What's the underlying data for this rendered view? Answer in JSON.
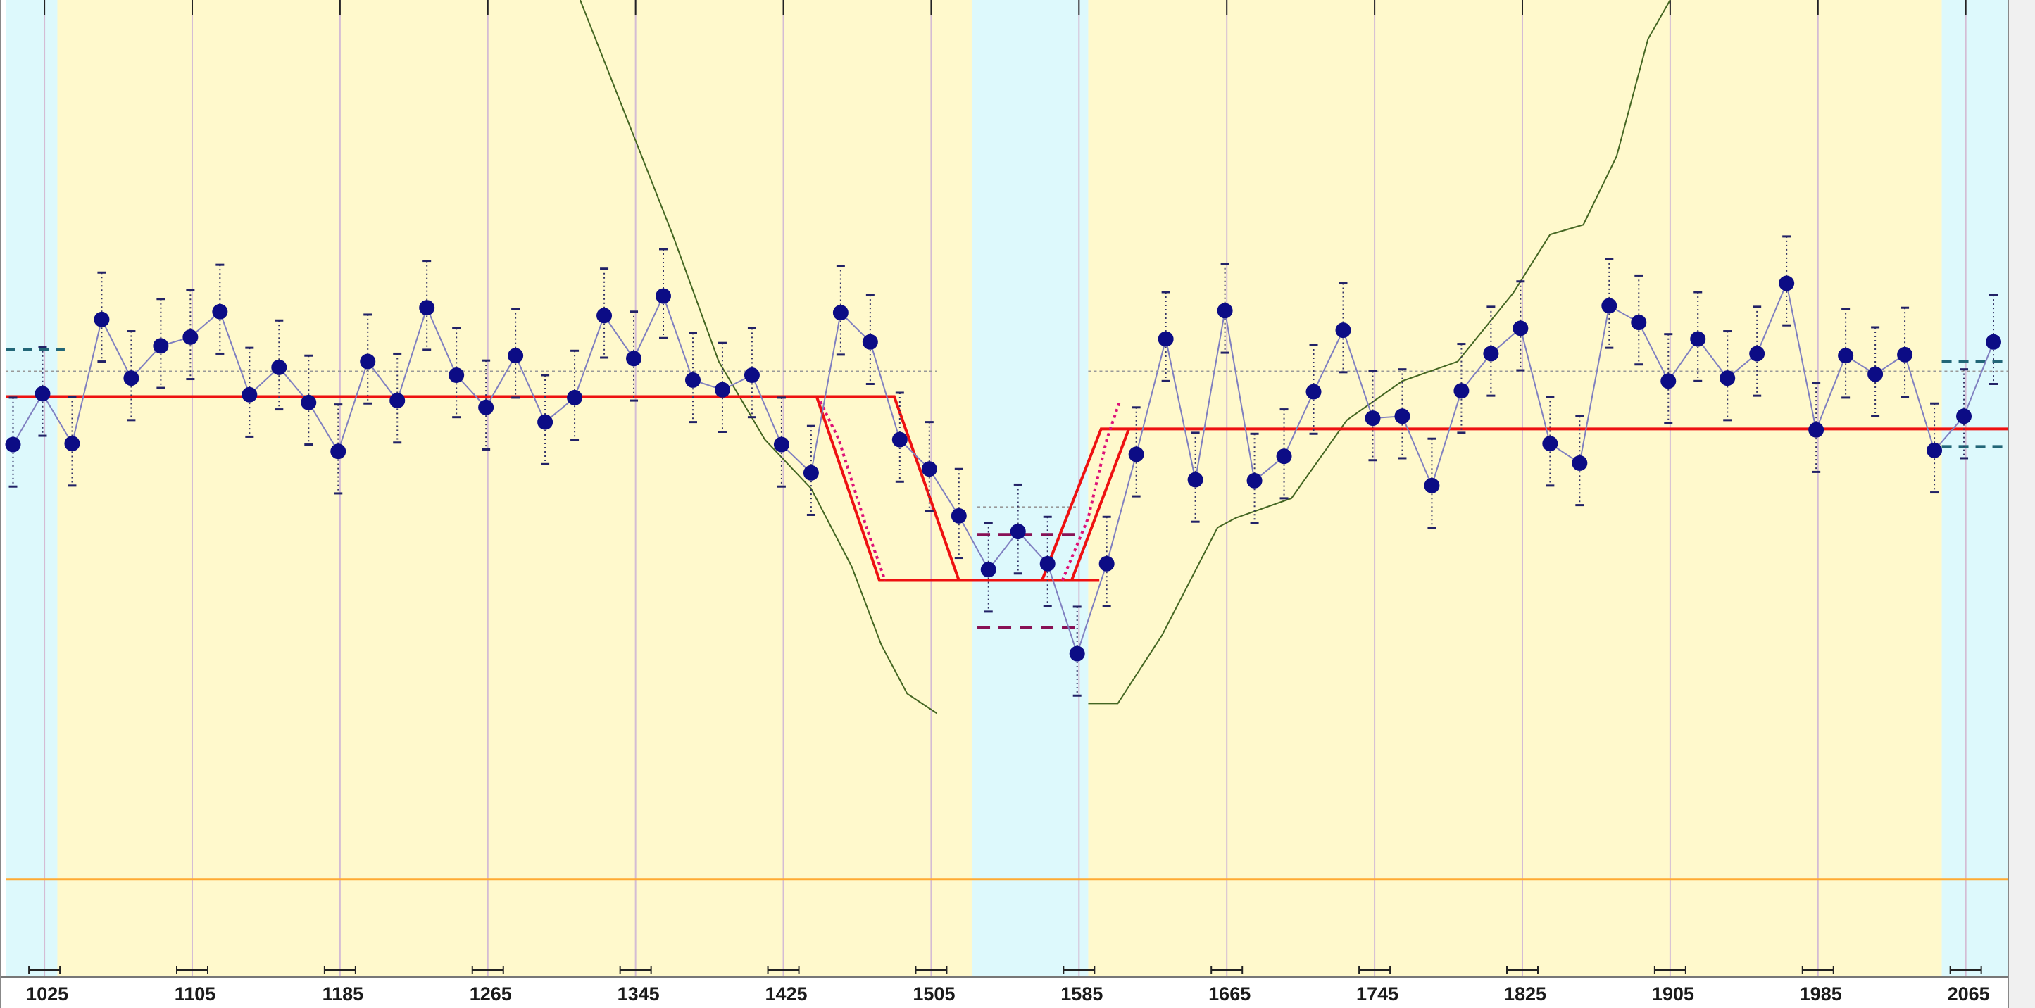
{
  "chart_data": {
    "type": "scatter",
    "title": "",
    "xlabel": "",
    "ylabel": "",
    "xlim": [
      1004,
      2088
    ],
    "ylim": [
      0,
      100
    ],
    "grid": true,
    "x_tick_labels": [
      "1025",
      "1105",
      "1185",
      "1265",
      "1345",
      "1425",
      "1505",
      "1585",
      "1665",
      "1745",
      "1825",
      "1905",
      "1985",
      "2065"
    ],
    "x_ticks": [
      1025,
      1105,
      1185,
      1265,
      1345,
      1425,
      1505,
      1585,
      1665,
      1745,
      1825,
      1905,
      1985,
      2065
    ],
    "colors": {
      "background_yellow": "#fff9cc",
      "background_cyan": "#ddf9fc",
      "points": "#0c0c85",
      "connector": "#7f7fc0",
      "model": "#ee1111",
      "model_dotted": "#dd1177",
      "dashed_levels": "#881155",
      "edge_dashed": "#226677",
      "smooth_curve": "#446622",
      "baseline": "#ffaa33",
      "grid": "#d4bcd4"
    },
    "background_bands": [
      {
        "from": 1004,
        "to": 1032,
        "color": "cyan"
      },
      {
        "from": 1032,
        "to": 1527,
        "color": "yellow"
      },
      {
        "from": 1527,
        "to": 1590,
        "color": "cyan"
      },
      {
        "from": 1590,
        "to": 2052,
        "color": "yellow"
      },
      {
        "from": 2052,
        "to": 2088,
        "color": "cyan"
      }
    ],
    "observations": {
      "x": [
        1008,
        1024,
        1040,
        1056,
        1072,
        1088,
        1104,
        1120,
        1136,
        1152,
        1168,
        1184,
        1200,
        1216,
        1232,
        1248,
        1264,
        1280,
        1296,
        1312,
        1328,
        1344,
        1360,
        1376,
        1392,
        1408,
        1424,
        1440,
        1456,
        1472,
        1488,
        1504,
        1520,
        1536,
        1552,
        1568,
        1584,
        1600,
        1616,
        1632,
        1648,
        1664,
        1680,
        1696,
        1712,
        1728,
        1744,
        1760,
        1776,
        1792,
        1808,
        1824,
        1840,
        1856,
        1872,
        1888,
        1904,
        1920,
        1936,
        1952,
        1968,
        1984,
        2000,
        2016,
        2032,
        2048,
        2064,
        2080
      ],
      "y": [
        54.5,
        59.7,
        54.6,
        67.3,
        61.3,
        64.6,
        65.5,
        68.1,
        59.6,
        62.4,
        58.8,
        53.8,
        63.0,
        59.0,
        68.5,
        61.6,
        58.3,
        63.6,
        56.8,
        59.3,
        67.7,
        63.3,
        69.7,
        61.1,
        60.1,
        61.6,
        54.5,
        51.6,
        68.0,
        65.0,
        55.0,
        52.0,
        47.2,
        41.7,
        45.6,
        42.3,
        33.1,
        42.3,
        53.5,
        65.3,
        50.9,
        68.2,
        50.8,
        53.3,
        59.9,
        66.2,
        57.2,
        57.4,
        50.3,
        60.0,
        63.8,
        66.4,
        54.6,
        52.6,
        68.7,
        67.0,
        61.0,
        65.3,
        61.3,
        63.8,
        71.0,
        56.0,
        63.6,
        61.7,
        63.7,
        53.9,
        57.4,
        65.0
      ],
      "error_bars": true
    },
    "model_fit": {
      "step_high": 59.4,
      "step_low": 40.6,
      "step_high_right": 56.1,
      "upper_band_center": 61.9,
      "lower_band_center": 48.1
    },
    "smooth_curve": {
      "x": [
        1315,
        1340,
        1365,
        1390,
        1415,
        1440,
        1462,
        1478,
        1492,
        1508,
        1590,
        1606,
        1630,
        1660,
        1670,
        1700,
        1730,
        1760,
        1790,
        1820,
        1840,
        1858,
        1876,
        1893,
        1905
      ],
      "y": [
        100,
        88,
        76,
        63,
        55,
        50,
        42,
        34,
        29,
        27,
        28,
        28,
        35,
        46,
        47,
        49,
        57,
        61,
        63,
        70,
        76,
        77,
        84,
        96,
        100
      ]
    },
    "reference_line": {
      "y": 10
    }
  }
}
